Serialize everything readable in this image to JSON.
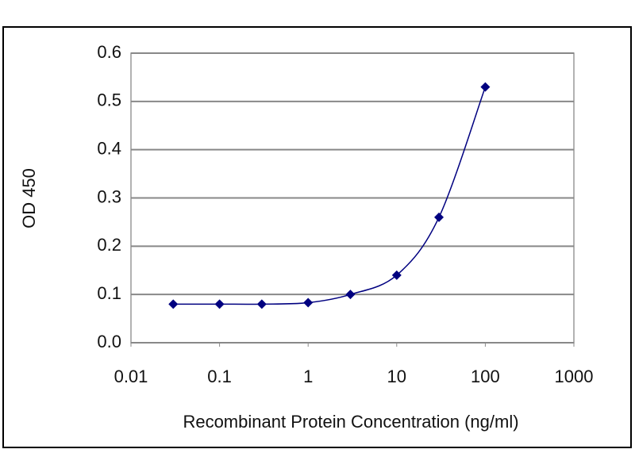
{
  "chart_data": {
    "type": "line",
    "x_label": "Recombinant Protein Concentration (ng/ml)",
    "y_label": "OD 450",
    "x": [
      0.03,
      0.1,
      0.3,
      1,
      3,
      10,
      30,
      100
    ],
    "values": [
      0.08,
      0.08,
      0.08,
      0.083,
      0.1,
      0.14,
      0.26,
      0.53
    ],
    "color": "#000080",
    "x_log": true,
    "xlim": [
      0.01,
      1000
    ],
    "xticks": [
      0.01,
      0.1,
      1,
      10,
      100,
      1000
    ],
    "ylim": [
      0,
      0.6
    ],
    "yticks": [
      {
        "value": 0,
        "label": "0.0"
      },
      0.1,
      0.2,
      0.3,
      0.4,
      0.5,
      0.6
    ],
    "grid": true
  }
}
